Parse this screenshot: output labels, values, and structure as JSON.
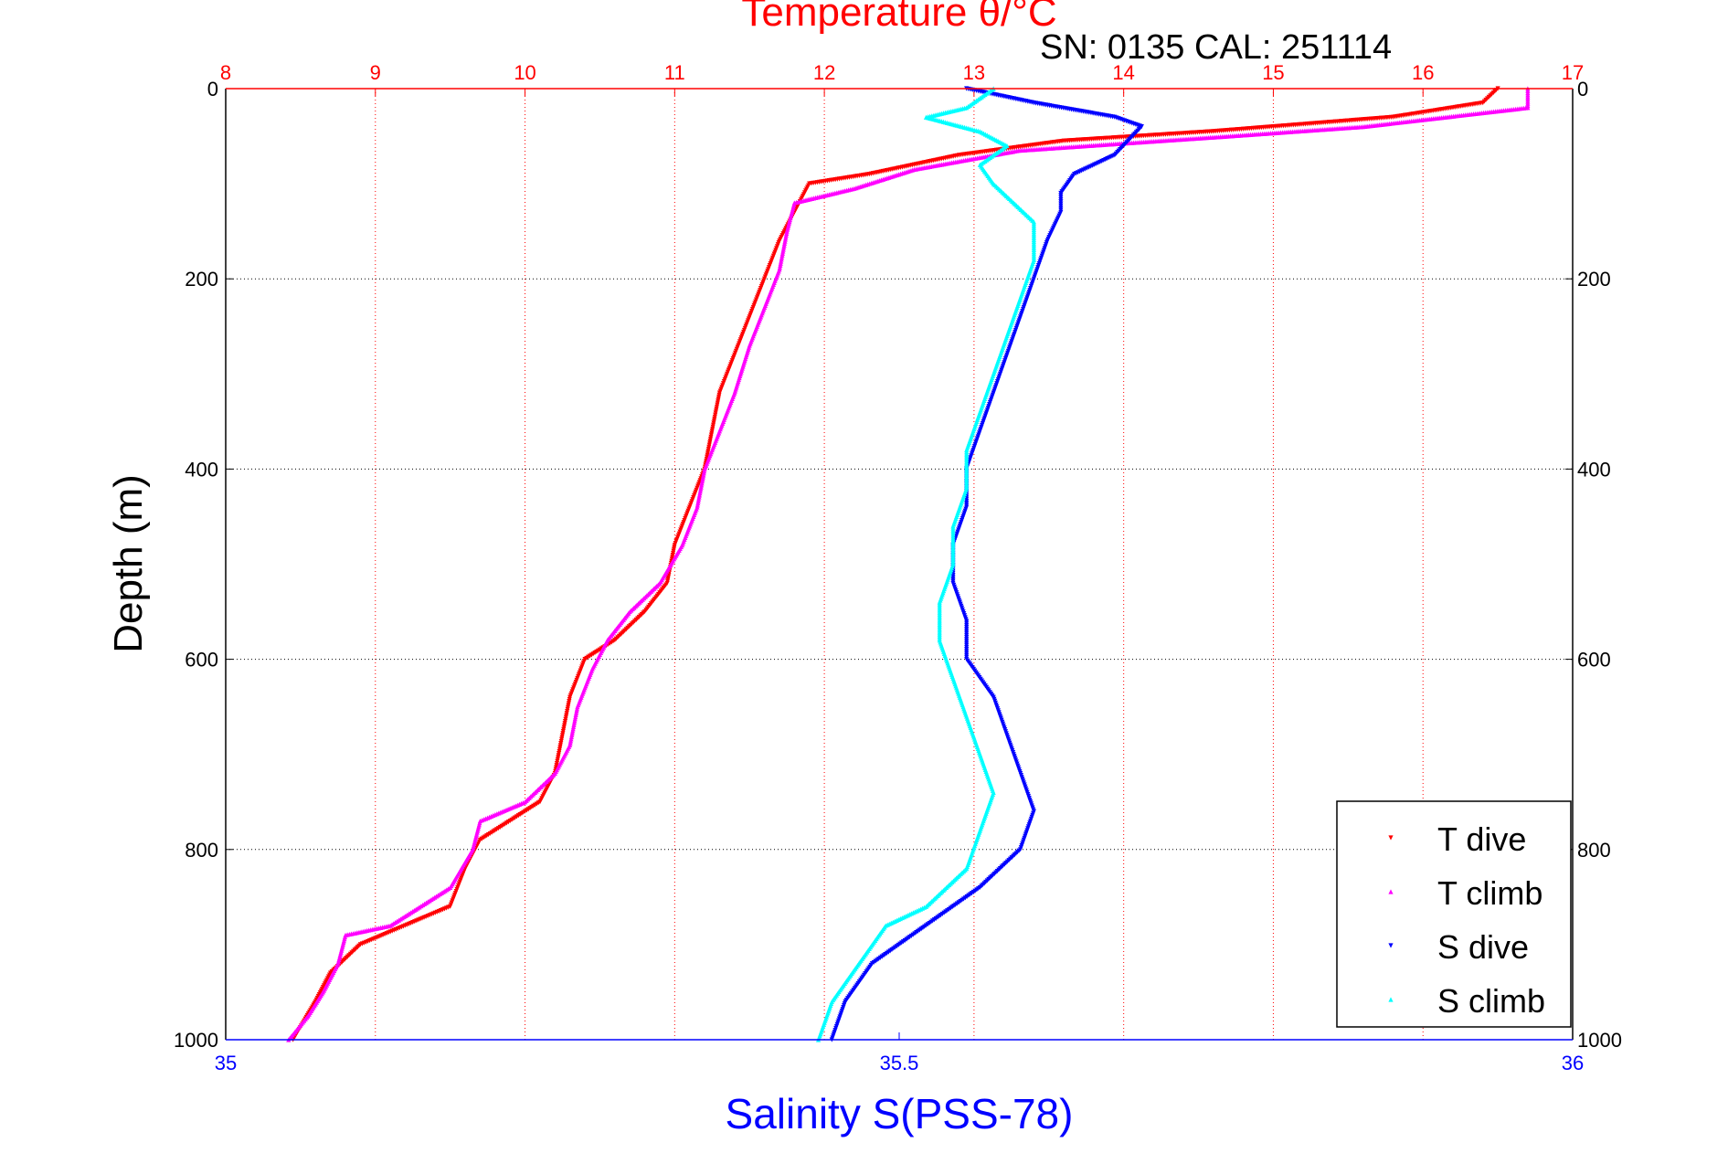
{
  "chart_data": {
    "type": "scatter",
    "title": "Temperature θ/°C",
    "subtitle": "SN: 0135  CAL: 251114",
    "xlabel": "Salinity S(PSS-78)",
    "ylabel": "Depth (m)",
    "temperature_axis": {
      "label": "Temperature θ/°C",
      "range": [
        8,
        17
      ],
      "ticks": [
        "8",
        "9",
        "10",
        "11",
        "12",
        "13",
        "14",
        "15",
        "16",
        "17"
      ],
      "color": "#ff0000"
    },
    "salinity_axis": {
      "label": "Salinity S(PSS-78)",
      "range": [
        35,
        36
      ],
      "ticks": [
        "35",
        "35.5",
        "36"
      ],
      "color": "#0000ff"
    },
    "depth_axis": {
      "range": [
        0,
        1000
      ],
      "ticks": [
        "0",
        "200",
        "400",
        "600",
        "800",
        "1000"
      ],
      "inverted": true
    },
    "grid": true,
    "legend_position": "bottom-right",
    "series": [
      {
        "name": "T dive",
        "axis": "temperature",
        "color": "#ff0000",
        "marker": "down-triangle",
        "points": [
          [
            16.5,
            0
          ],
          [
            16.4,
            15
          ],
          [
            15.8,
            30
          ],
          [
            14.6,
            45
          ],
          [
            13.6,
            55
          ],
          [
            12.9,
            70
          ],
          [
            12.3,
            90
          ],
          [
            11.9,
            100
          ],
          [
            11.8,
            130
          ],
          [
            11.7,
            160
          ],
          [
            11.6,
            200
          ],
          [
            11.5,
            240
          ],
          [
            11.4,
            280
          ],
          [
            11.3,
            320
          ],
          [
            11.25,
            360
          ],
          [
            11.2,
            400
          ],
          [
            11.1,
            440
          ],
          [
            11.0,
            480
          ],
          [
            10.95,
            520
          ],
          [
            10.8,
            550
          ],
          [
            10.6,
            580
          ],
          [
            10.4,
            600
          ],
          [
            10.3,
            640
          ],
          [
            10.25,
            680
          ],
          [
            10.2,
            720
          ],
          [
            10.1,
            750
          ],
          [
            9.9,
            770
          ],
          [
            9.7,
            790
          ],
          [
            9.6,
            820
          ],
          [
            9.5,
            860
          ],
          [
            9.2,
            880
          ],
          [
            8.9,
            900
          ],
          [
            8.7,
            930
          ],
          [
            8.6,
            960
          ],
          [
            8.45,
            1000
          ]
        ]
      },
      {
        "name": "T climb",
        "axis": "temperature",
        "color": "#ff00ff",
        "marker": "up-triangle",
        "points": [
          [
            16.7,
            0
          ],
          [
            16.7,
            20
          ],
          [
            15.6,
            40
          ],
          [
            14.7,
            50
          ],
          [
            13.3,
            65
          ],
          [
            12.6,
            85
          ],
          [
            12.2,
            105
          ],
          [
            11.8,
            120
          ],
          [
            11.75,
            150
          ],
          [
            11.7,
            190
          ],
          [
            11.6,
            230
          ],
          [
            11.5,
            270
          ],
          [
            11.4,
            320
          ],
          [
            11.3,
            360
          ],
          [
            11.2,
            400
          ],
          [
            11.15,
            440
          ],
          [
            11.05,
            480
          ],
          [
            10.9,
            520
          ],
          [
            10.7,
            550
          ],
          [
            10.55,
            580
          ],
          [
            10.45,
            610
          ],
          [
            10.35,
            650
          ],
          [
            10.3,
            690
          ],
          [
            10.2,
            720
          ],
          [
            10.0,
            750
          ],
          [
            9.7,
            770
          ],
          [
            9.65,
            800
          ],
          [
            9.5,
            840
          ],
          [
            9.1,
            880
          ],
          [
            8.8,
            890
          ],
          [
            8.75,
            920
          ],
          [
            8.65,
            950
          ],
          [
            8.55,
            975
          ],
          [
            8.42,
            1000
          ]
        ]
      },
      {
        "name": "S dive",
        "axis": "salinity",
        "color": "#0000ff",
        "marker": "down-triangle",
        "points": [
          [
            35.55,
            0
          ],
          [
            35.6,
            15
          ],
          [
            35.66,
            30
          ],
          [
            35.68,
            40
          ],
          [
            35.67,
            55
          ],
          [
            35.66,
            70
          ],
          [
            35.63,
            90
          ],
          [
            35.62,
            110
          ],
          [
            35.62,
            130
          ],
          [
            35.61,
            160
          ],
          [
            35.6,
            200
          ],
          [
            35.59,
            240
          ],
          [
            35.58,
            280
          ],
          [
            35.57,
            320
          ],
          [
            35.56,
            360
          ],
          [
            35.55,
            400
          ],
          [
            35.55,
            440
          ],
          [
            35.54,
            480
          ],
          [
            35.54,
            520
          ],
          [
            35.55,
            560
          ],
          [
            35.55,
            600
          ],
          [
            35.57,
            640
          ],
          [
            35.58,
            680
          ],
          [
            35.59,
            720
          ],
          [
            35.6,
            760
          ],
          [
            35.59,
            800
          ],
          [
            35.56,
            840
          ],
          [
            35.52,
            880
          ],
          [
            35.48,
            920
          ],
          [
            35.46,
            960
          ],
          [
            35.45,
            1000
          ]
        ]
      },
      {
        "name": "S climb",
        "axis": "salinity",
        "color": "#00ffff",
        "marker": "up-triangle",
        "points": [
          [
            35.57,
            0
          ],
          [
            35.55,
            20
          ],
          [
            35.52,
            30
          ],
          [
            35.56,
            45
          ],
          [
            35.58,
            60
          ],
          [
            35.56,
            80
          ],
          [
            35.57,
            100
          ],
          [
            35.6,
            140
          ],
          [
            35.6,
            180
          ],
          [
            35.59,
            220
          ],
          [
            35.58,
            260
          ],
          [
            35.57,
            300
          ],
          [
            35.56,
            340
          ],
          [
            35.55,
            380
          ],
          [
            35.55,
            420
          ],
          [
            35.54,
            460
          ],
          [
            35.54,
            500
          ],
          [
            35.53,
            540
          ],
          [
            35.53,
            580
          ],
          [
            35.54,
            620
          ],
          [
            35.55,
            660
          ],
          [
            35.56,
            700
          ],
          [
            35.57,
            740
          ],
          [
            35.56,
            780
          ],
          [
            35.55,
            820
          ],
          [
            35.52,
            860
          ],
          [
            35.49,
            880
          ],
          [
            35.47,
            920
          ],
          [
            35.45,
            960
          ],
          [
            35.44,
            1000
          ]
        ]
      }
    ]
  }
}
